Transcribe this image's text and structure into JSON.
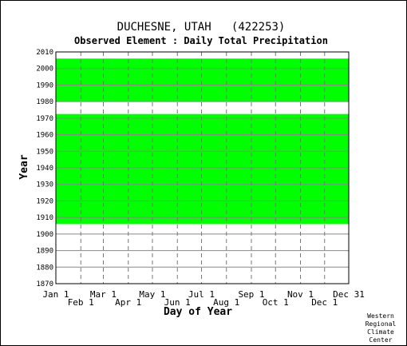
{
  "chart_data": {
    "type": "heatmap",
    "title": "DUCHESNE, UTAH   (422253)",
    "subtitle": "Observed Element : Daily Total Precipitation",
    "xlabel": "Day of Year",
    "ylabel": "Year",
    "x_ticks_upper": [
      "Jan 1",
      "Mar 1",
      "May 1",
      "Jul 1",
      "Sep 1",
      "Nov 1",
      "Dec 31"
    ],
    "x_ticks_lower": [
      "Feb 1",
      "Apr 1",
      "Jun 1",
      "Aug 1",
      "Oct 1",
      "Dec 1"
    ],
    "x_tick_days": [
      1,
      32,
      60,
      91,
      121,
      152,
      182,
      213,
      244,
      274,
      305,
      335,
      365
    ],
    "y_ticks": [
      "2010",
      "2000",
      "1990",
      "1980",
      "1970",
      "1960",
      "1950",
      "1940",
      "1930",
      "1920",
      "1910",
      "1900",
      "1890",
      "1880",
      "1870"
    ],
    "ylim": [
      1870,
      2010
    ],
    "xlim": [
      1,
      365
    ],
    "grid": true,
    "data_color": "#00ff00",
    "observed_periods": [
      {
        "start_year": 1906,
        "end_year": 1972.5
      },
      {
        "start_year": 1980,
        "end_year": 2006
      }
    ],
    "credit": [
      "Western",
      "Regional",
      "Climate",
      "Center"
    ]
  }
}
